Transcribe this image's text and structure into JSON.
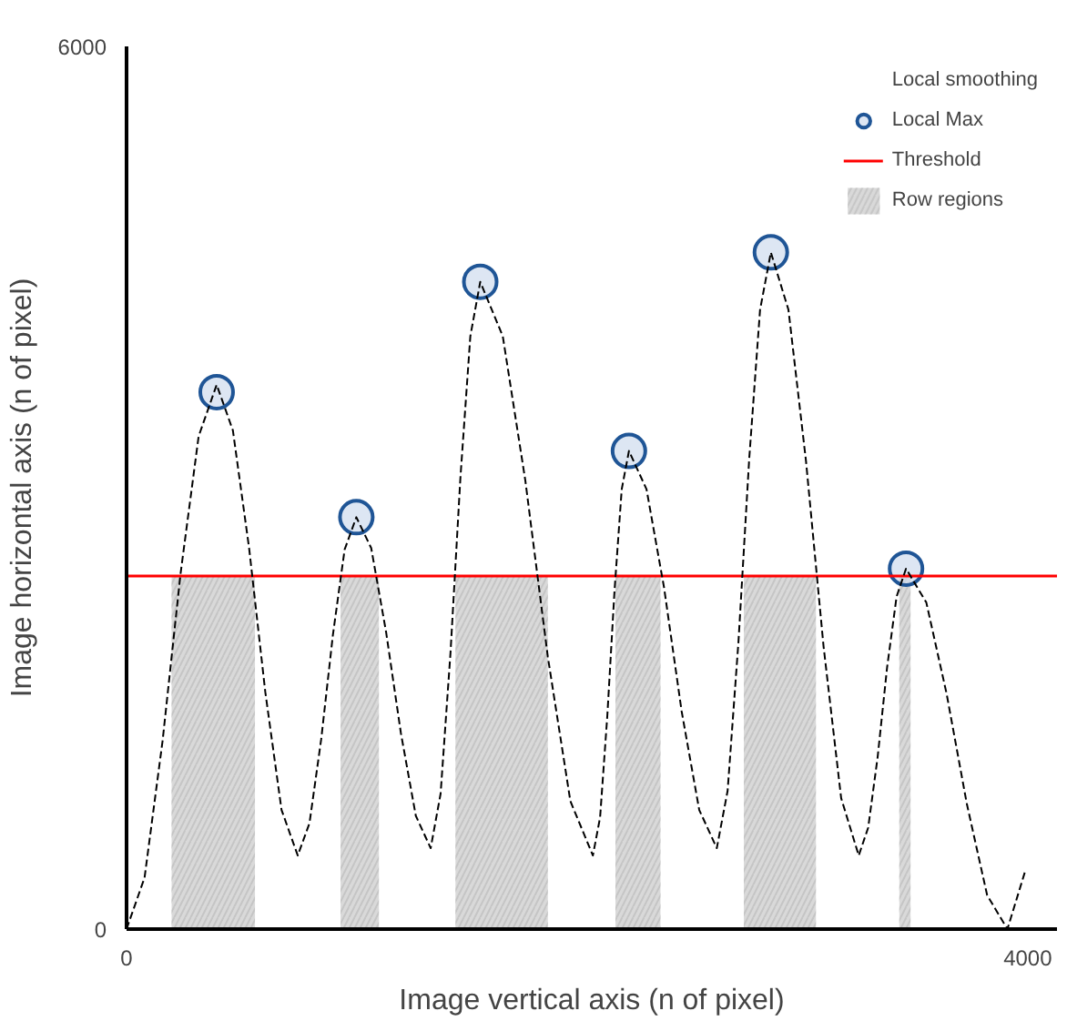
{
  "chart_data": {
    "type": "line",
    "xlabel": "Image vertical axis (n of pixel)",
    "ylabel": "Image horizontal axis (n of pixel)",
    "xlim": [
      0,
      4130
    ],
    "ylim": [
      0,
      6000
    ],
    "xticks": [
      0,
      4000
    ],
    "yticks": [
      0,
      6000
    ],
    "grid": false,
    "legend": "top right",
    "annotations": [
      "Local smoothing"
    ],
    "series": [
      {
        "color": "#000000",
        "line_style": "dashed",
        "marker": "none",
        "x": [
          0,
          80,
          160,
          240,
          320,
          400,
          472,
          544,
          616,
          688,
          760,
          812,
          864,
          916,
          968,
          1020,
          1086,
          1152,
          1218,
          1284,
          1350,
          1394,
          1438,
          1482,
          1526,
          1570,
          1670,
          1770,
          1870,
          1970,
          2070,
          2102,
          2134,
          2166,
          2198,
          2230,
          2308,
          2386,
          2464,
          2542,
          2620,
          2668,
          2716,
          2764,
          2812,
          2860,
          2938,
          3016,
          3094,
          3172,
          3250,
          3292,
          3334,
          3376,
          3418,
          3460,
          3550,
          3640,
          3730,
          3820,
          3910,
          3990
        ],
        "values": [
          0,
          350,
          1280,
          2420,
          3350,
          3700,
          3390,
          2590,
          1610,
          810,
          500,
          720,
          1290,
          2000,
          2580,
          2800,
          2590,
          2020,
          1330,
          770,
          550,
          920,
          1880,
          3070,
          4030,
          4400,
          4030,
          3050,
          1850,
          870,
          500,
          760,
          1450,
          2300,
          2990,
          3250,
          2990,
          2320,
          1480,
          810,
          550,
          940,
          1950,
          3200,
          4210,
          4600,
          4210,
          3180,
          1920,
          890,
          500,
          690,
          1170,
          1780,
          2260,
          2450,
          2220,
          1600,
          850,
          230,
          0,
          400
        ]
      },
      {
        "type": "scatter",
        "name": "Local Max",
        "color": "#1f5596",
        "marker": "circle",
        "x": [
          400,
          1020,
          1570,
          2230,
          2860,
          3460
        ],
        "values": [
          3650,
          2800,
          4400,
          3250,
          4600,
          2450
        ]
      }
    ],
    "ref_lines": [
      {
        "axis": "y",
        "value": 2400,
        "label": "Threshold",
        "color": "#ff0000"
      }
    ],
    "bands": [
      {
        "axis": "x",
        "from": 200,
        "to": 570,
        "label": "Row regions",
        "color": "#d9d9d9"
      },
      {
        "axis": "x",
        "from": 950,
        "to": 1120,
        "color": "#d9d9d9"
      },
      {
        "axis": "x",
        "from": 1460,
        "to": 1870,
        "color": "#d9d9d9"
      },
      {
        "axis": "x",
        "from": 2170,
        "to": 2370,
        "color": "#d9d9d9"
      },
      {
        "axis": "x",
        "from": 2740,
        "to": 3060,
        "color": "#d9d9d9"
      },
      {
        "axis": "x",
        "from": 3430,
        "to": 3480,
        "color": "#d9d9d9"
      }
    ]
  }
}
